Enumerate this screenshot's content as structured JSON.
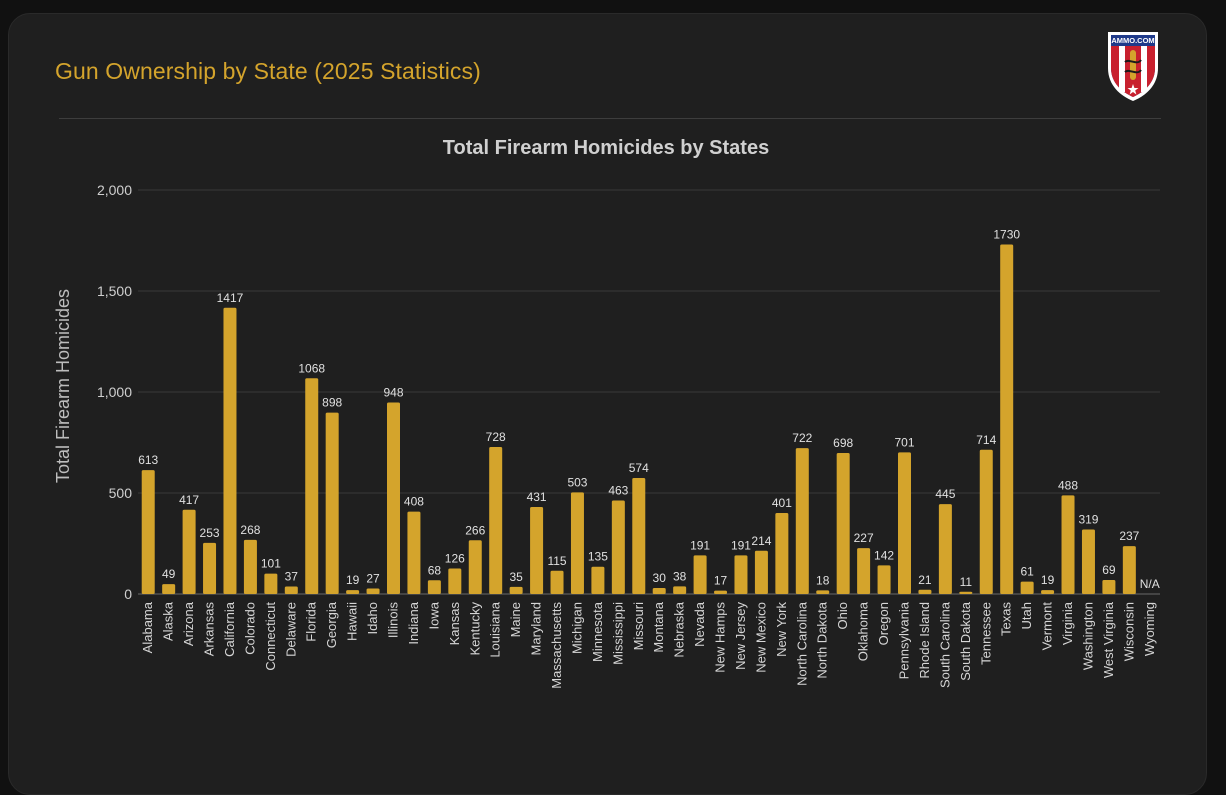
{
  "header": {
    "title": "Gun Ownership by State (2025 Statistics)",
    "logo_text": "AMMO.COM"
  },
  "colors": {
    "accent": "#d4a42c",
    "bar": "#d4a42c",
    "background": "#1f1f1f",
    "grid": "#3a3a3a",
    "text": "#d0d0d0"
  },
  "chart_data": {
    "type": "bar",
    "title": "Total Firearm Homicides by States",
    "xlabel": "",
    "ylabel": "Total Firearm Homicides",
    "ylim": [
      0,
      2000
    ],
    "yticks": [
      0,
      500,
      1000,
      1500,
      2000
    ],
    "ytick_labels": [
      "0",
      "500",
      "1,000",
      "1,500",
      "2,000"
    ],
    "grid": true,
    "na_label": "N/A",
    "categories": [
      "Alabama",
      "Alaska",
      "Arizona",
      "Arkansas",
      "California",
      "Colorado",
      "Connecticut",
      "Delaware",
      "Florida",
      "Georgia",
      "Hawaii",
      "Idaho",
      "Illinois",
      "Indiana",
      "Iowa",
      "Kansas",
      "Kentucky",
      "Louisiana",
      "Maine",
      "Maryland",
      "Massachusetts",
      "Michigan",
      "Minnesota",
      "Mississippi",
      "Missouri",
      "Montana",
      "Nebraska",
      "Nevada",
      "New Hamps",
      "New Jersey",
      "New Mexico",
      "New York",
      "North Carolina",
      "North Dakota",
      "Ohio",
      "Oklahoma",
      "Oregon",
      "Pennsylvania",
      "Rhode Island",
      "South Carolina",
      "South Dakota",
      "Tennessee",
      "Texas",
      "Utah",
      "Vermont",
      "Virginia",
      "Washington",
      "West Virginia",
      "Wisconsin",
      "Wyoming"
    ],
    "values": [
      613,
      49,
      417,
      253,
      1417,
      268,
      101,
      37,
      1068,
      898,
      19,
      27,
      948,
      408,
      68,
      126,
      266,
      728,
      35,
      431,
      115,
      503,
      135,
      463,
      574,
      30,
      38,
      191,
      17,
      191,
      214,
      401,
      722,
      18,
      698,
      227,
      142,
      701,
      21,
      445,
      11,
      714,
      1730,
      61,
      19,
      488,
      319,
      69,
      237,
      null
    ]
  }
}
